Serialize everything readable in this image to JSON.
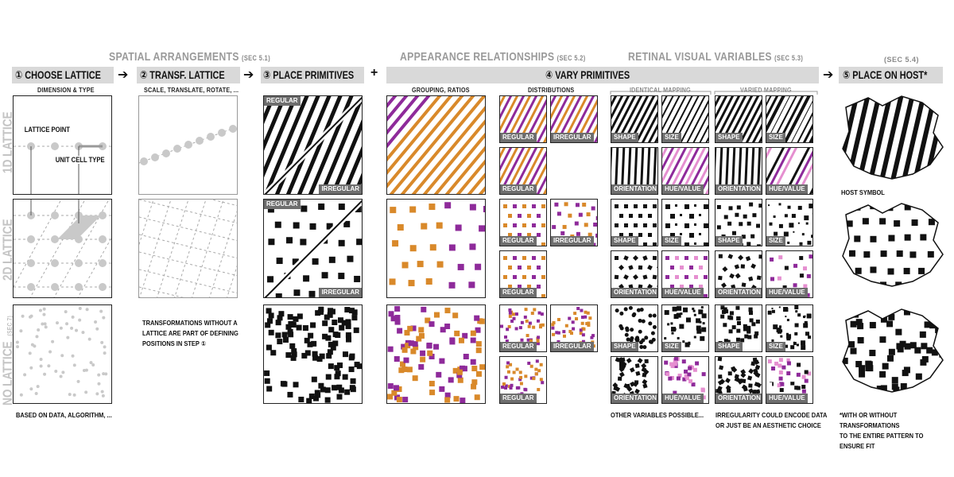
{
  "sections": {
    "spatial": {
      "title": "SPATIAL ARRANGEMENTS",
      "ref": "(SEC 5.1)"
    },
    "appearance": {
      "title": "APPEARANCE RELATIONSHIPS",
      "ref": "(SEC 5.2)"
    },
    "retinal": {
      "title": "RETINAL VISUAL VARIABLES",
      "ref": "(SEC 5.3)"
    },
    "host": {
      "ref": "(SEC 5.4)"
    }
  },
  "steps": {
    "s1": "① CHOOSE LATTICE",
    "s2": "② TRANSF. LATTICE",
    "s3": "③ PLACE PRIMITIVES",
    "s4": "④ VARY PRIMITIVES",
    "s5": "⑤ PLACE ON HOST*",
    "arrow": "➔",
    "plus": "+"
  },
  "rows": {
    "r1": "1D LATTICE",
    "r2": "2D LATTICE",
    "r3": "NO LATTICE",
    "r3_ref": "(SEC 7)"
  },
  "subheads": {
    "dimension": "DIMENSION & TYPE",
    "transform": "SCALE, TRANSLATE, ROTATE, ...",
    "grouping": "GROUPING, RATIOS",
    "distributions": "DISTRIBUTIONS",
    "identical": "IDENTICAL MAPPING",
    "varied": "VARIED MAPPING"
  },
  "annotations": {
    "lattice_point": "LATTICE POINT",
    "unit_cell": "UNIT CELL TYPE",
    "host_symbol": "HOST SYMBOL"
  },
  "notes": {
    "based_on": "BASED ON DATA, ALGORITHM, ...",
    "transf_line1": "TRANSFORMATIONS WITHOUT A",
    "transf_line2": "LATTICE ARE PART OF DEFINING",
    "transf_line3": "POSITIONS IN STEP ①",
    "other_vars": "OTHER VARIABLES POSSIBLE...",
    "irreg_line1": "IRREGULARITY COULD ENCODE DATA",
    "irreg_line2": "OR JUST BE AN AESTHETIC CHOICE",
    "host_line1": "*WITH OR WITHOUT TRANSFORMATIONS",
    "host_line2": "TO THE ENTIRE PATTERN TO ENSURE FIT"
  },
  "tags": {
    "regular": "REGULAR",
    "irregular": "IRREGULAR",
    "shape": "SHAPE",
    "size": "SIZE",
    "orientation": "ORIENTATION",
    "hue_value": "HUE/VALUE"
  },
  "colors": {
    "orange": "#d9892a",
    "purple": "#8e2a9a",
    "pink": "#e58fd0",
    "gray_bar": "#d9d9d9",
    "tag_bg": "#6e6e6e",
    "title_gray": "#9a9a9a"
  }
}
